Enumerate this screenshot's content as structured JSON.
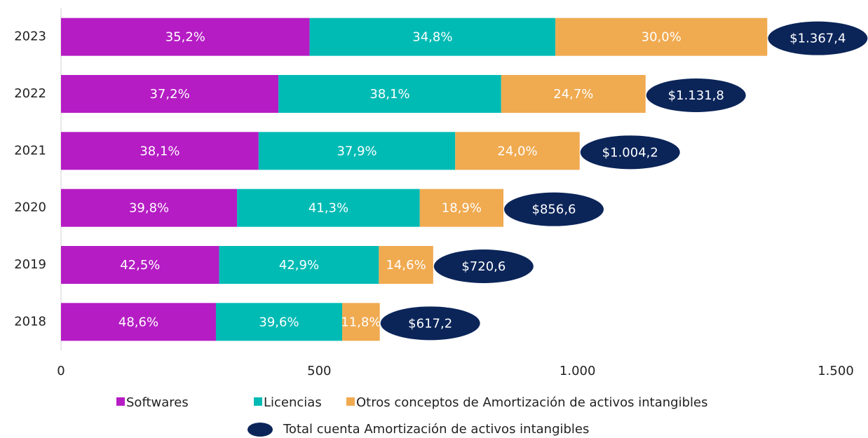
{
  "chart_data": {
    "type": "stacked_bar_horizontal",
    "categories": [
      "2023",
      "2022",
      "2021",
      "2020",
      "2019",
      "2018"
    ],
    "series": [
      {
        "name": "Softwares",
        "color": "#b51cc4",
        "values": [
          35.2,
          37.2,
          38.1,
          39.8,
          42.5,
          48.6
        ],
        "value_labels": [
          "35,2%",
          "37,2%",
          "38,1%",
          "39,8%",
          "42,5%",
          "48,6%"
        ]
      },
      {
        "name": "Licencias",
        "color": "#00bbb4",
        "values": [
          34.8,
          38.1,
          37.9,
          41.3,
          42.9,
          39.6
        ],
        "value_labels": [
          "34,8%",
          "38,1%",
          "37,9%",
          "41,3%",
          "42,9%",
          "39,6%"
        ]
      },
      {
        "name": "Otros conceptos de Amortización de activos intangibles",
        "color": "#f0aa50",
        "values": [
          30.0,
          24.7,
          24.0,
          18.9,
          14.6,
          11.8
        ],
        "value_labels": [
          "30,0%",
          "24,7%",
          "24,0%",
          "18,9%",
          "14,6%",
          "11,8%"
        ]
      }
    ],
    "totals": {
      "name": "Total cuenta Amortización de activos intangibles",
      "color": "#0b2559",
      "values": [
        1367.4,
        1131.8,
        1004.2,
        856.6,
        720.6,
        617.2
      ],
      "value_labels": [
        "$1.367,4",
        "$1.131,8",
        "$1.004,2",
        "$856,6",
        "$720,6",
        "$617,2"
      ]
    },
    "xlim": [
      0,
      1500
    ],
    "xticks": [
      0,
      500,
      {
        "value": 1000,
        "label": "1.000"
      },
      {
        "value": 1500,
        "label": "1.500"
      }
    ],
    "grid": false
  }
}
